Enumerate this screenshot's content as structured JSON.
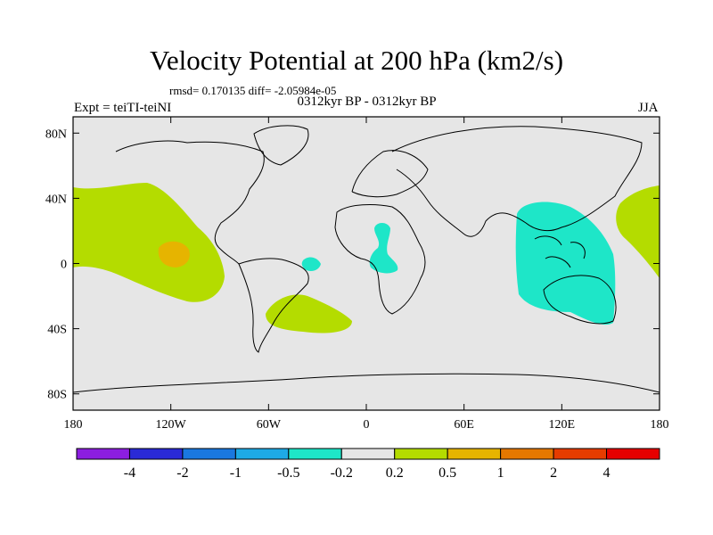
{
  "header": {
    "title": "Velocity Potential at 200 hPa (km2/s)",
    "stats": "rmsd= 0.170135 diff= -2.05984e-05",
    "left_label": "Expt = teiTI-teiNI",
    "center_label": "0312kyr BP - 0312kyr BP",
    "right_label": "JJA"
  },
  "map": {
    "lon_ticks": [
      {
        "lon": -180,
        "label": "180"
      },
      {
        "lon": -120,
        "label": "120W"
      },
      {
        "lon": -60,
        "label": "60W"
      },
      {
        "lon": 0,
        "label": "0"
      },
      {
        "lon": 60,
        "label": "60E"
      },
      {
        "lon": 120,
        "label": "120E"
      },
      {
        "lon": 180,
        "label": "180"
      }
    ],
    "lat_ticks": [
      {
        "lat": 80,
        "label": "80N"
      },
      {
        "lat": 40,
        "label": "40N"
      },
      {
        "lat": 0,
        "label": "0"
      },
      {
        "lat": -40,
        "label": "40S"
      },
      {
        "lat": -80,
        "label": "80S"
      }
    ],
    "background_color": "#e6e6e6"
  },
  "colorbar": {
    "colors": [
      "#8c1ee0",
      "#2a2ad6",
      "#1a78e0",
      "#1eaae6",
      "#1ee6c8",
      "#e6e6e6",
      "#b4dc00",
      "#e6b400",
      "#e67800",
      "#e63c00",
      "#e60000"
    ],
    "labels": [
      "-4",
      "-2",
      "-1",
      "-0.5",
      "-0.2",
      "0.2",
      "0.5",
      "1",
      "2",
      "4"
    ]
  }
}
